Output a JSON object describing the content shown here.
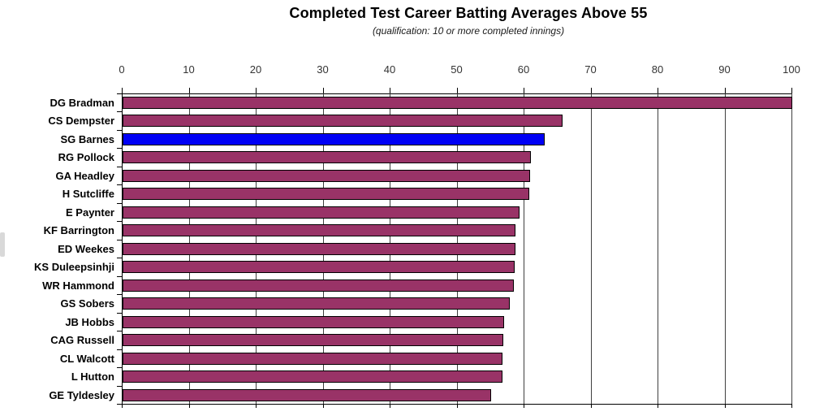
{
  "chart_data": {
    "type": "bar",
    "orientation": "horizontal",
    "title": "Completed Test Career Batting Averages Above 55",
    "subtitle": "(qualification: 10 or more completed innings)",
    "categories": [
      "DG Bradman",
      "CS Dempster",
      "SG Barnes",
      "RG Pollock",
      "GA Headley",
      "H Sutcliffe",
      "E Paynter",
      "KF Barrington",
      "ED Weekes",
      "KS Duleepsinhji",
      "WR Hammond",
      "GS Sobers",
      "JB Hobbs",
      "CAG Russell",
      "CL Walcott",
      "L Hutton",
      "GE Tyldesley"
    ],
    "values": [
      99.94,
      65.72,
      63.05,
      60.97,
      60.83,
      60.73,
      59.23,
      58.67,
      58.61,
      58.52,
      58.45,
      57.78,
      56.94,
      56.87,
      56.68,
      56.67,
      55.0
    ],
    "xlim": [
      0,
      100
    ],
    "x_ticks": [
      0,
      10,
      20,
      30,
      40,
      50,
      60,
      70,
      80,
      90,
      100
    ],
    "axis_position": "top",
    "grid": true,
    "legend": "none",
    "bar_color": "#993367",
    "bar_border_color": "#000000",
    "highlight": {
      "category": "SG Barnes",
      "index": 2,
      "color": "#0000f5"
    },
    "gridline_color": "#3f3f3f",
    "axis_color": "#000000",
    "background_color": "#ffffff"
  }
}
